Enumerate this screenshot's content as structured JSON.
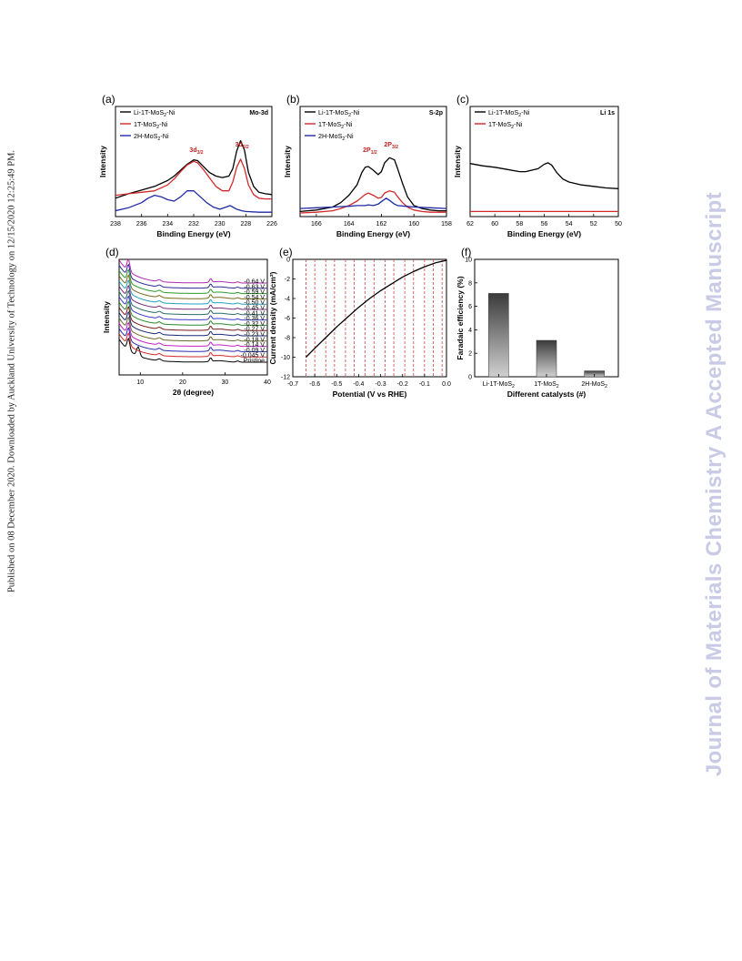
{
  "side_text_left": "Published on 08 December 2020. Downloaded by Auckland University of Technology on 12/15/2020 12:25:49 PM.",
  "side_text_right": "Journal of Materials Chemistry A Accepted Manuscript",
  "chart_data": [
    {
      "panel": "(a)",
      "type": "line",
      "corner_label": "Mo-3d",
      "xlabel": "Binding Energy (eV)",
      "ylabel": "Intensity",
      "xlim": [
        238,
        226
      ],
      "xticks": [
        "238",
        "236",
        "234",
        "232",
        "230",
        "228",
        "226"
      ],
      "annotations": [
        {
          "text": "3d",
          "sub": "3/2",
          "x": 231.9
        },
        {
          "text": "3d",
          "sub": "5/2",
          "x": 228.4
        }
      ],
      "series": [
        {
          "name": "Li-1T-MoS2-Ni",
          "color": "#000000",
          "x": [
            238,
            237,
            236,
            235,
            234,
            233.5,
            233,
            232.5,
            232,
            231.7,
            231.3,
            230.8,
            230.3,
            229.8,
            229.3,
            229,
            228.7,
            228.4,
            228.1,
            227.8,
            227.4,
            227,
            226.5,
            226
          ],
          "y": [
            0.2,
            0.26,
            0.31,
            0.36,
            0.44,
            0.5,
            0.58,
            0.66,
            0.72,
            0.71,
            0.64,
            0.55,
            0.5,
            0.48,
            0.5,
            0.6,
            0.84,
            0.98,
            0.85,
            0.55,
            0.36,
            0.28,
            0.26,
            0.25
          ]
        },
        {
          "name": "1T-MoS2-Ni",
          "color": "#d22a2a",
          "x": [
            238,
            237,
            236,
            235,
            234,
            233.5,
            233,
            232.5,
            232,
            231.7,
            231.3,
            230.8,
            230.3,
            229.8,
            229.3,
            229,
            228.7,
            228.4,
            228.1,
            227.8,
            227.4,
            227,
            226.5,
            226
          ],
          "y": [
            0.24,
            0.26,
            0.28,
            0.3,
            0.38,
            0.46,
            0.56,
            0.65,
            0.7,
            0.68,
            0.6,
            0.48,
            0.36,
            0.3,
            0.3,
            0.42,
            0.62,
            0.73,
            0.6,
            0.38,
            0.25,
            0.2,
            0.19,
            0.19
          ]
        },
        {
          "name": "2H-MoS2-Ni",
          "color": "#1f2aa6",
          "x": [
            238,
            237,
            236,
            235.5,
            235,
            234.5,
            234,
            233.5,
            233,
            232.5,
            232,
            231.5,
            231,
            230.5,
            230,
            229.5,
            229.2,
            229,
            228.7,
            228.3,
            228,
            227,
            226
          ],
          "y": [
            0.03,
            0.07,
            0.14,
            0.2,
            0.24,
            0.22,
            0.18,
            0.16,
            0.22,
            0.3,
            0.3,
            0.22,
            0.14,
            0.08,
            0.05,
            0.08,
            0.1,
            0.08,
            0.05,
            0.03,
            0.02,
            0.01,
            0.01
          ]
        }
      ]
    },
    {
      "panel": "(b)",
      "type": "line",
      "corner_label": "S-2p",
      "xlabel": "Binding Energy (eV)",
      "ylabel": "Intensity",
      "xlim": [
        167,
        158
      ],
      "xticks": [
        "166",
        "164",
        "162",
        "160",
        "158"
      ],
      "annotations": [
        {
          "text": "2P",
          "sub": "1/2",
          "x": 162.8
        },
        {
          "text": "2P",
          "sub": "3/2",
          "x": 161.5
        }
      ],
      "series": [
        {
          "name": "Li-1T-MoS2-Ni",
          "color": "#000000",
          "x": [
            167,
            166,
            165,
            164.5,
            164,
            163.5,
            163.2,
            163,
            162.8,
            162.5,
            162.2,
            162,
            161.8,
            161.5,
            161.2,
            161,
            160.7,
            160.4,
            160,
            159.5,
            159,
            158.5,
            158
          ],
          "y": [
            0.02,
            0.04,
            0.08,
            0.14,
            0.24,
            0.38,
            0.55,
            0.62,
            0.63,
            0.58,
            0.52,
            0.56,
            0.68,
            0.75,
            0.72,
            0.6,
            0.4,
            0.22,
            0.1,
            0.06,
            0.04,
            0.03,
            0.03
          ]
        },
        {
          "name": "1T-MoS2-Ni",
          "color": "#d22a2a",
          "x": [
            167,
            166,
            165,
            164.5,
            164,
            163.5,
            163,
            162.8,
            162.5,
            162.2,
            162,
            161.8,
            161.5,
            161.2,
            161,
            160.7,
            160.4,
            160,
            159.5,
            159,
            158
          ],
          "y": [
            0.0,
            0.01,
            0.03,
            0.06,
            0.1,
            0.16,
            0.25,
            0.27,
            0.24,
            0.2,
            0.21,
            0.27,
            0.3,
            0.28,
            0.22,
            0.14,
            0.08,
            0.04,
            0.02,
            0.01,
            0.01
          ]
        },
        {
          "name": "2H-MoS2-Ni",
          "color": "#1f2aa6",
          "x": [
            167,
            166,
            165,
            164,
            163.5,
            163,
            162.8,
            162.5,
            162.2,
            161.9,
            161.7,
            161.5,
            161.2,
            161,
            160.5,
            160,
            159,
            158
          ],
          "y": [
            0.06,
            0.07,
            0.08,
            0.09,
            0.1,
            0.1,
            0.11,
            0.1,
            0.12,
            0.17,
            0.2,
            0.17,
            0.12,
            0.1,
            0.09,
            0.08,
            0.07,
            0.06
          ]
        }
      ]
    },
    {
      "panel": "(c)",
      "type": "line",
      "corner_label": "Li 1s",
      "xlabel": "Binding Energy (eV)",
      "ylabel": "Intensity",
      "xlim": [
        62,
        50
      ],
      "xticks": [
        "62",
        "60",
        "58",
        "56",
        "54",
        "52",
        "50"
      ],
      "series": [
        {
          "name": "Li-1T-MoS2-Ni",
          "color": "#000000",
          "x": [
            62,
            61,
            60,
            59,
            58,
            57.5,
            57,
            56.5,
            56,
            55.7,
            55.4,
            55,
            54.5,
            54,
            53.5,
            53,
            52,
            51,
            50
          ],
          "y": [
            0.67,
            0.64,
            0.62,
            0.59,
            0.56,
            0.56,
            0.58,
            0.6,
            0.66,
            0.68,
            0.65,
            0.55,
            0.46,
            0.42,
            0.4,
            0.38,
            0.36,
            0.34,
            0.33
          ]
        },
        {
          "name": "1T-MoS2-Ni",
          "color": "#d22a2a",
          "x": [
            62,
            59,
            56,
            53,
            50
          ],
          "y": [
            0.02,
            0.02,
            0.02,
            0.02,
            0.02
          ]
        }
      ]
    },
    {
      "panel": "(d)",
      "type": "line",
      "xlabel": "2θ (degree)",
      "ylabel": "Intensity",
      "xlim": [
        5,
        40
      ],
      "xticks": [
        "10",
        "20",
        "30",
        "40"
      ],
      "offset_curves": [
        {
          "label": "Pristine",
          "color": "#000000"
        },
        {
          "label": "-0.045 V",
          "color": "#d22a2a"
        },
        {
          "label": "-0.09 V",
          "color": "#2a2ab0"
        },
        {
          "label": "-0.14 V",
          "color": "#c020c0"
        },
        {
          "label": "-0.18 V",
          "color": "#6b6b2a"
        },
        {
          "label": "-0.23 V",
          "color": "#1a2a7a"
        },
        {
          "label": "-0.27 V",
          "color": "#7a1a1a"
        },
        {
          "label": "-0.32 V",
          "color": "#2a8a2a"
        },
        {
          "label": "-0.36 V",
          "color": "#3a3ad0"
        },
        {
          "label": "-0.41 V",
          "color": "#2a6a6a"
        },
        {
          "label": "-0.45 V",
          "color": "#7a2a7a"
        },
        {
          "label": "-0.50 V",
          "color": "#20a0c0"
        },
        {
          "label": "-0.54 V",
          "color": "#7a6a1a"
        },
        {
          "label": "-0.59 V",
          "color": "#2a9a2a"
        },
        {
          "label": "-0.63 V",
          "color": "#2a2a9a"
        },
        {
          "label": "-0.64 V",
          "color": "#b02ab0"
        }
      ]
    },
    {
      "panel": "(e)",
      "type": "line",
      "xlabel": "Potential (V vs RHE)",
      "ylabel": "Current density (mA/cm²)",
      "xlim": [
        -0.7,
        0.0
      ],
      "ylim": [
        -12,
        0
      ],
      "xticks": [
        "-0.7",
        "-0.6",
        "-0.5",
        "-0.4",
        "-0.3",
        "-0.2",
        "-0.1",
        "0.0"
      ],
      "yticks": [
        "-12",
        "-10",
        "-8",
        "-6",
        "-4",
        "-2",
        "0"
      ],
      "dashed_lines_x": [
        -0.64,
        -0.6,
        -0.55,
        -0.51,
        -0.46,
        -0.42,
        -0.37,
        -0.33,
        -0.28,
        -0.24,
        -0.19,
        -0.15,
        -0.1,
        -0.06,
        -0.02
      ],
      "series": [
        {
          "name": "",
          "color": "#000000",
          "x": [
            -0.64,
            -0.6,
            -0.55,
            -0.5,
            -0.45,
            -0.4,
            -0.35,
            -0.3,
            -0.25,
            -0.2,
            -0.15,
            -0.1,
            -0.05,
            0.0
          ],
          "y": [
            -10.0,
            -9.1,
            -8.0,
            -6.9,
            -5.9,
            -4.9,
            -4.0,
            -3.2,
            -2.5,
            -1.8,
            -1.25,
            -0.75,
            -0.35,
            -0.1
          ]
        }
      ]
    },
    {
      "panel": "(f)",
      "type": "bar",
      "xlabel": "Different catalysts (#)",
      "ylabel": "Faradaic efficiency (%)",
      "ylim": [
        0,
        10
      ],
      "yticks": [
        "0",
        "2",
        "4",
        "6",
        "8",
        "10"
      ],
      "categories": [
        "Li-1T-MoS2",
        "1T-MoS2",
        "2H-MoS2"
      ],
      "values": [
        7.1,
        3.1,
        0.5
      ]
    }
  ]
}
